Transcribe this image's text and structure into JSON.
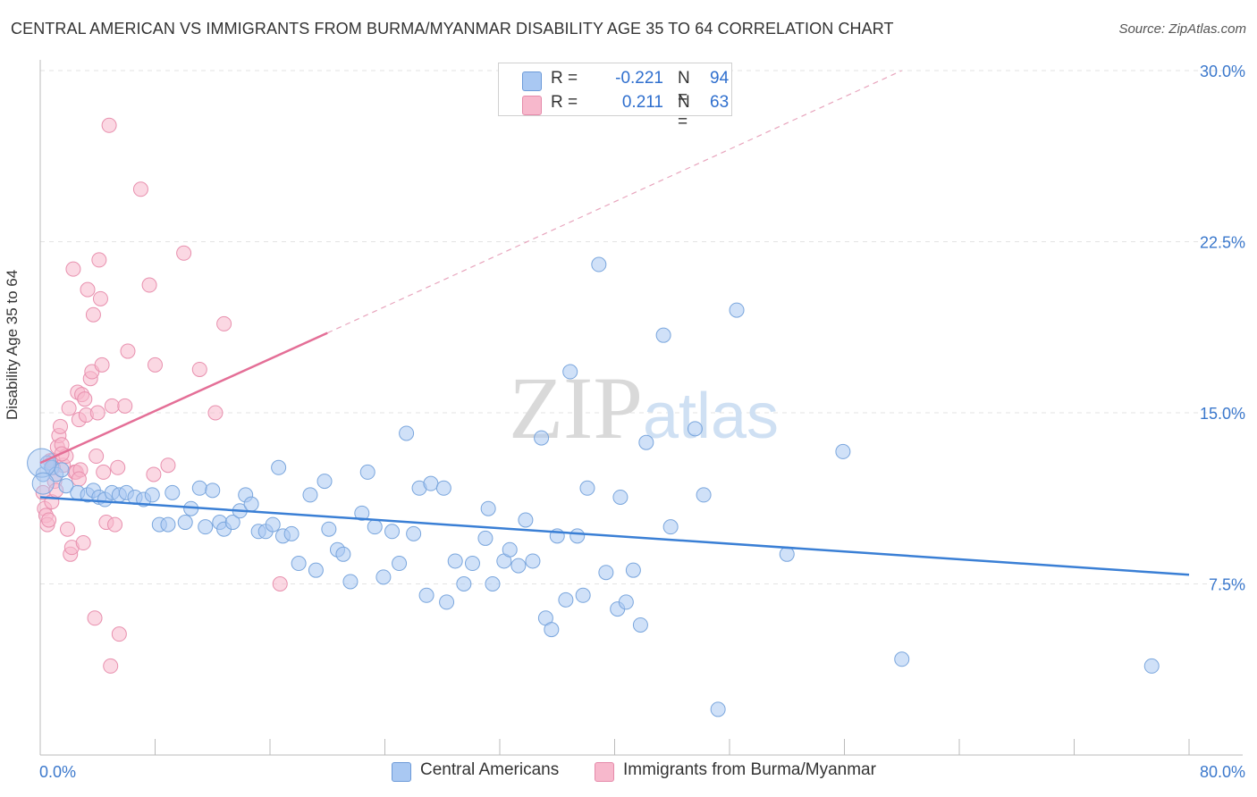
{
  "title": "CENTRAL AMERICAN VS IMMIGRANTS FROM BURMA/MYANMAR DISABILITY AGE 35 TO 64 CORRELATION CHART",
  "source": "Source: ZipAtlas.com",
  "watermark": "ZIPatlas",
  "legend_top": {
    "rows": [
      {
        "r_label": "R =",
        "r_value": "-0.221",
        "n_label": "N =",
        "n_value": "94",
        "color": "#a9c8f2"
      },
      {
        "r_label": "R =",
        "r_value": "0.211",
        "n_label": "N =",
        "n_value": "63",
        "color": "#f7b8cc"
      }
    ]
  },
  "chart_data": {
    "type": "scatter",
    "ylabel": "Disability Age 35 to 64",
    "xlim": [
      0,
      80
    ],
    "ylim": [
      0,
      30
    ],
    "x_tick_labels": [
      "0.0%",
      "80.0%"
    ],
    "y_tick_labels": [
      "7.5%",
      "15.0%",
      "22.5%",
      "30.0%"
    ],
    "y_ticks": [
      7.5,
      15.0,
      22.5,
      30.0
    ],
    "grid": true,
    "legend_position": "bottom",
    "series": [
      {
        "name": "Central Americans",
        "color": "#3a7fd5",
        "fill": "#a9c8f2",
        "trend": {
          "x": [
            0,
            80
          ],
          "y": [
            11.3,
            7.9
          ]
        },
        "points": [
          [
            0.2,
            12.3
          ],
          [
            0.5,
            12.8
          ],
          [
            0.8,
            12.6
          ],
          [
            1.1,
            12.3
          ],
          [
            1.5,
            12.5
          ],
          [
            1.8,
            11.8
          ],
          [
            2.6,
            11.5
          ],
          [
            3.3,
            11.4
          ],
          [
            3.7,
            11.6
          ],
          [
            4.1,
            11.3
          ],
          [
            4.5,
            11.2
          ],
          [
            5.0,
            11.5
          ],
          [
            5.5,
            11.4
          ],
          [
            6.0,
            11.5
          ],
          [
            6.6,
            11.3
          ],
          [
            7.2,
            11.2
          ],
          [
            7.8,
            11.4
          ],
          [
            8.3,
            10.1
          ],
          [
            8.9,
            10.1
          ],
          [
            9.2,
            11.5
          ],
          [
            10.1,
            10.2
          ],
          [
            10.5,
            10.8
          ],
          [
            11.1,
            11.7
          ],
          [
            11.5,
            10.0
          ],
          [
            12.0,
            11.6
          ],
          [
            12.5,
            10.2
          ],
          [
            12.8,
            9.9
          ],
          [
            13.4,
            10.2
          ],
          [
            13.9,
            10.7
          ],
          [
            14.3,
            11.4
          ],
          [
            14.7,
            11.0
          ],
          [
            15.2,
            9.8
          ],
          [
            15.7,
            9.8
          ],
          [
            16.2,
            10.1
          ],
          [
            16.6,
            12.6
          ],
          [
            16.9,
            9.6
          ],
          [
            17.5,
            9.7
          ],
          [
            18.0,
            8.4
          ],
          [
            18.8,
            11.4
          ],
          [
            19.2,
            8.1
          ],
          [
            19.8,
            12.0
          ],
          [
            20.1,
            9.9
          ],
          [
            20.7,
            9.0
          ],
          [
            21.1,
            8.8
          ],
          [
            21.6,
            7.6
          ],
          [
            22.4,
            10.6
          ],
          [
            22.8,
            12.4
          ],
          [
            23.3,
            10.0
          ],
          [
            23.9,
            7.8
          ],
          [
            24.5,
            9.8
          ],
          [
            25.0,
            8.4
          ],
          [
            25.5,
            14.1
          ],
          [
            26.0,
            9.7
          ],
          [
            26.4,
            11.7
          ],
          [
            26.9,
            7.0
          ],
          [
            27.2,
            11.9
          ],
          [
            28.1,
            11.7
          ],
          [
            28.3,
            6.7
          ],
          [
            28.9,
            8.5
          ],
          [
            29.5,
            7.5
          ],
          [
            30.1,
            8.4
          ],
          [
            31.0,
            9.5
          ],
          [
            31.2,
            10.8
          ],
          [
            31.5,
            7.5
          ],
          [
            32.3,
            8.5
          ],
          [
            32.7,
            9.0
          ],
          [
            33.3,
            8.3
          ],
          [
            33.8,
            10.3
          ],
          [
            34.3,
            8.5
          ],
          [
            34.9,
            13.9
          ],
          [
            35.2,
            6.0
          ],
          [
            35.6,
            5.5
          ],
          [
            36.0,
            9.6
          ],
          [
            36.6,
            6.8
          ],
          [
            36.9,
            16.8
          ],
          [
            37.4,
            9.6
          ],
          [
            37.8,
            7.0
          ],
          [
            38.1,
            11.7
          ],
          [
            38.9,
            21.5
          ],
          [
            39.4,
            8.0
          ],
          [
            40.2,
            6.4
          ],
          [
            40.4,
            11.3
          ],
          [
            40.8,
            6.7
          ],
          [
            41.3,
            8.1
          ],
          [
            41.8,
            5.7
          ],
          [
            42.2,
            13.7
          ],
          [
            43.4,
            18.4
          ],
          [
            43.9,
            10.0
          ],
          [
            45.6,
            14.3
          ],
          [
            46.2,
            11.4
          ],
          [
            47.2,
            2.0
          ],
          [
            48.5,
            19.5
          ],
          [
            52.0,
            8.8
          ],
          [
            55.9,
            13.3
          ],
          [
            60.0,
            4.2
          ],
          [
            77.4,
            3.9
          ]
        ]
      },
      {
        "name": "Immigrants from Burma/Myanmar",
        "color": "#e46f97",
        "fill": "#f7b8cc",
        "trend": {
          "x": [
            0,
            20
          ],
          "y": [
            12.8,
            18.5
          ]
        },
        "trend_extension": {
          "x": [
            20,
            60
          ],
          "y": [
            18.5,
            30.0
          ]
        },
        "points": [
          [
            0.2,
            11.5
          ],
          [
            0.3,
            10.8
          ],
          [
            0.4,
            10.5
          ],
          [
            0.5,
            10.1
          ],
          [
            0.6,
            10.3
          ],
          [
            0.7,
            12.9
          ],
          [
            0.8,
            11.1
          ],
          [
            0.9,
            12.9
          ],
          [
            1.0,
            12.0
          ],
          [
            1.1,
            11.6
          ],
          [
            1.2,
            13.5
          ],
          [
            1.3,
            14.0
          ],
          [
            1.4,
            14.4
          ],
          [
            1.5,
            13.6
          ],
          [
            1.6,
            12.7
          ],
          [
            1.8,
            13.1
          ],
          [
            1.9,
            9.9
          ],
          [
            2.0,
            15.2
          ],
          [
            2.1,
            8.8
          ],
          [
            2.2,
            9.1
          ],
          [
            2.3,
            21.3
          ],
          [
            2.4,
            12.4
          ],
          [
            2.5,
            12.4
          ],
          [
            2.6,
            15.9
          ],
          [
            2.7,
            14.7
          ],
          [
            2.8,
            12.5
          ],
          [
            2.9,
            15.8
          ],
          [
            3.0,
            9.3
          ],
          [
            3.1,
            15.6
          ],
          [
            3.2,
            14.9
          ],
          [
            3.3,
            20.4
          ],
          [
            3.5,
            16.5
          ],
          [
            3.6,
            16.8
          ],
          [
            3.7,
            19.3
          ],
          [
            3.8,
            6.0
          ],
          [
            3.9,
            13.1
          ],
          [
            4.0,
            15.0
          ],
          [
            4.1,
            21.7
          ],
          [
            4.2,
            20.0
          ],
          [
            4.3,
            17.1
          ],
          [
            4.4,
            12.4
          ],
          [
            4.6,
            10.2
          ],
          [
            4.8,
            27.6
          ],
          [
            4.9,
            3.9
          ],
          [
            5.0,
            15.3
          ],
          [
            5.2,
            10.1
          ],
          [
            5.4,
            12.6
          ],
          [
            5.5,
            5.3
          ],
          [
            5.9,
            15.3
          ],
          [
            6.1,
            17.7
          ],
          [
            7.0,
            24.8
          ],
          [
            7.6,
            20.6
          ],
          [
            7.9,
            12.3
          ],
          [
            8.0,
            17.1
          ],
          [
            8.9,
            12.7
          ],
          [
            10.0,
            22.0
          ],
          [
            11.1,
            16.9
          ],
          [
            12.2,
            15.0
          ],
          [
            12.8,
            18.9
          ],
          [
            16.7,
            7.5
          ],
          [
            1.5,
            13.2
          ],
          [
            2.7,
            12.1
          ],
          [
            0.9,
            12.6
          ]
        ]
      }
    ]
  }
}
